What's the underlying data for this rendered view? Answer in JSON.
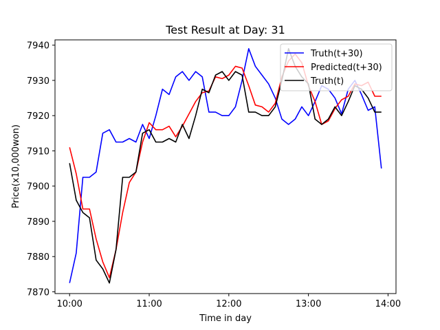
{
  "chart_data": {
    "type": "line",
    "title": "Test Result at Day: 31",
    "xlabel": "Time in day",
    "ylabel": "Price(x10,000won)",
    "x_ticks": [
      {
        "value": 0,
        "label": "10:00"
      },
      {
        "value": 60,
        "label": "11:00"
      },
      {
        "value": 120,
        "label": "12:00"
      },
      {
        "value": 180,
        "label": "13:00"
      },
      {
        "value": 240,
        "label": "14:00"
      }
    ],
    "y_ticks": [
      7870,
      7880,
      7890,
      7900,
      7910,
      7920,
      7930,
      7940
    ],
    "xlim": [
      -11,
      246
    ],
    "ylim": [
      7869.5,
      7941.5
    ],
    "grid": false,
    "legend_position": "top-right",
    "x": [
      0,
      5,
      10,
      15,
      20,
      25,
      30,
      35,
      40,
      45,
      50,
      55,
      60,
      65,
      70,
      75,
      80,
      85,
      90,
      95,
      100,
      105,
      110,
      115,
      120,
      125,
      130,
      135,
      140,
      145,
      150,
      155,
      160,
      165,
      170,
      175,
      180,
      185,
      190,
      195,
      200,
      205,
      210,
      215,
      220,
      225,
      230,
      235
    ],
    "series": [
      {
        "name": "Truth(t+30)",
        "color": "#0000ff",
        "values": [
          7872.5,
          7881.0,
          7902.5,
          7902.5,
          7904.0,
          7915.0,
          7916.0,
          7912.5,
          7912.5,
          7913.5,
          7912.5,
          7917.5,
          7913.5,
          7920.0,
          7927.5,
          7926.0,
          7931.0,
          7932.5,
          7930.0,
          7932.5,
          7931.0,
          7921.0,
          7921.0,
          7920.0,
          7920.0,
          7922.5,
          7930.0,
          7939.0,
          7934.0,
          7931.5,
          7929.0,
          7925.0,
          7919.0,
          7917.5,
          7919.0,
          7922.5,
          7920.0,
          7924.0,
          7928.5,
          7927.5,
          7925.0,
          7920.5,
          7927.5,
          7930.0,
          7926.0,
          7921.5,
          7922.5,
          7905.0
        ]
      },
      {
        "name": "Predicted(t+30)",
        "color": "#ff0000",
        "values": [
          7911.0,
          7903.5,
          7893.5,
          7893.5,
          7885.0,
          7878.5,
          7874.0,
          7882.0,
          7892.5,
          7901.0,
          7904.0,
          7912.5,
          7918.0,
          7916.0,
          7916.0,
          7917.0,
          7914.0,
          7917.0,
          7920.5,
          7924.0,
          7926.5,
          7927.0,
          7931.0,
          7930.5,
          7931.5,
          7934.0,
          7933.5,
          7928.5,
          7923.0,
          7922.5,
          7921.0,
          7923.5,
          7931.0,
          7935.5,
          7937.5,
          7935.0,
          7928.5,
          7924.0,
          7917.5,
          7918.5,
          7922.0,
          7924.5,
          7925.5,
          7929.0,
          7928.5,
          7929.5,
          7925.5,
          7925.5
        ]
      },
      {
        "name": "Truth(t)",
        "color": "#000000",
        "values": [
          7906.5,
          7896.0,
          7892.5,
          7891.0,
          7879.0,
          7876.5,
          7872.5,
          7882.0,
          7902.5,
          7902.5,
          7904.0,
          7915.0,
          7916.0,
          7912.5,
          7912.5,
          7913.5,
          7912.5,
          7917.5,
          7913.5,
          7920.0,
          7927.5,
          7926.5,
          7931.5,
          7932.5,
          7930.0,
          7932.5,
          7931.5,
          7921.0,
          7921.0,
          7920.0,
          7920.0,
          7922.5,
          7930.0,
          7939.0,
          7934.0,
          7931.0,
          7929.0,
          7919.0,
          7917.5,
          7919.0,
          7922.5,
          7920.0,
          7924.0,
          7928.5,
          7927.5,
          7925.0,
          7921.0,
          7921.0
        ]
      }
    ]
  }
}
